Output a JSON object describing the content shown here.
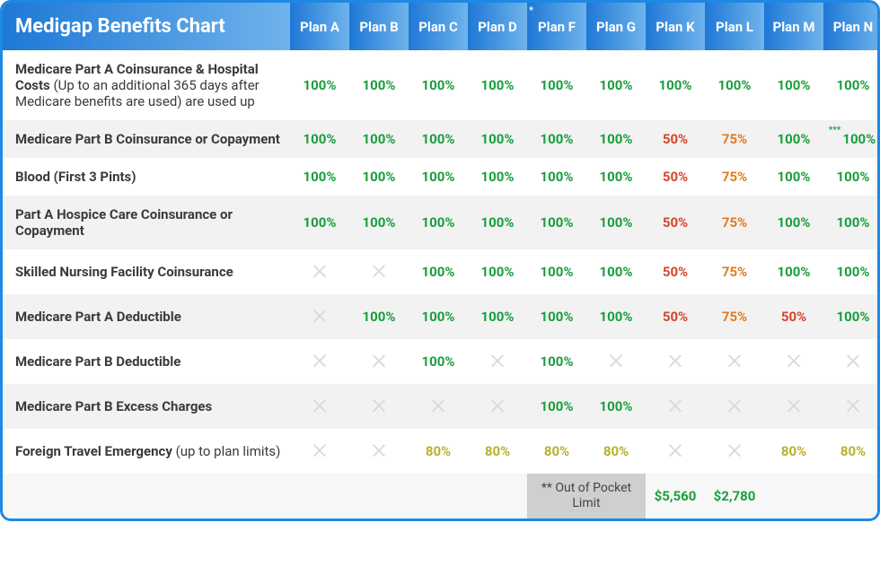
{
  "title": "Medigap Benefits Chart",
  "colors": {
    "header_gradient_from": "#1e78d6",
    "header_gradient_to": "#6fb3ec",
    "border": "#1e88e5",
    "pct100": "#1a9e3e",
    "pct80": "#b8b12c",
    "pct75": "#e07b1e",
    "pct50": "#d6452b",
    "x_icon": "#d9d9d9",
    "row_even": "#f2f2f2",
    "row_odd": "#ffffff",
    "footer_label_bg": "#cfcfcf",
    "footer_value": "#1a9e3e"
  },
  "plans": [
    "Plan A",
    "Plan B",
    "Plan C",
    "Plan D",
    "Plan F",
    "Plan G",
    "Plan K",
    "Plan L",
    "Plan M",
    "Plan N"
  ],
  "plan_f_star": "*",
  "benefits": [
    {
      "label_main": "Medicare Part A Coinsurance & Hospital Costs",
      "label_sub": " (Up to an additional 365 days after Medicare benefits are used) are used up",
      "values": [
        "100%",
        "100%",
        "100%",
        "100%",
        "100%",
        "100%",
        "100%",
        "100%",
        "100%",
        "100%"
      ]
    },
    {
      "label_main": "Medicare Part B Coinsurance or Copayment",
      "label_sub": "",
      "values": [
        "100%",
        "100%",
        "100%",
        "100%",
        "100%",
        "100%",
        "50%",
        "75%",
        "100%",
        "100%"
      ],
      "note_last": "***"
    },
    {
      "label_main": "Blood (First 3 Pints)",
      "label_sub": "",
      "values": [
        "100%",
        "100%",
        "100%",
        "100%",
        "100%",
        "100%",
        "50%",
        "75%",
        "100%",
        "100%"
      ]
    },
    {
      "label_main": "Part A Hospice Care Coinsurance or Copayment",
      "label_sub": "",
      "values": [
        "100%",
        "100%",
        "100%",
        "100%",
        "100%",
        "100%",
        "50%",
        "75%",
        "100%",
        "100%"
      ]
    },
    {
      "label_main": "Skilled Nursing Facility Coinsurance",
      "label_sub": "",
      "values": [
        "X",
        "X",
        "100%",
        "100%",
        "100%",
        "100%",
        "50%",
        "75%",
        "100%",
        "100%"
      ]
    },
    {
      "label_main": "Medicare Part A Deductible",
      "label_sub": "",
      "values": [
        "X",
        "100%",
        "100%",
        "100%",
        "100%",
        "100%",
        "50%",
        "75%",
        "50%",
        "100%"
      ]
    },
    {
      "label_main": "Medicare Part B Deductible",
      "label_sub": "",
      "values": [
        "X",
        "X",
        "100%",
        "X",
        "100%",
        "X",
        "X",
        "X",
        "X",
        "X"
      ]
    },
    {
      "label_main": "Medicare Part B Excess Charges",
      "label_sub": "",
      "values": [
        "X",
        "X",
        "X",
        "X",
        "100%",
        "100%",
        "X",
        "X",
        "X",
        "X"
      ]
    },
    {
      "label_main": "Foreign Travel Emergency",
      "label_sub": " (up to plan limits)",
      "values": [
        "X",
        "X",
        "80%",
        "80%",
        "80%",
        "80%",
        "X",
        "X",
        "80%",
        "80%"
      ]
    }
  ],
  "footer": {
    "label": "**  Out of Pocket Limit",
    "plan_k": "$5,560",
    "plan_l": "$2,780"
  }
}
